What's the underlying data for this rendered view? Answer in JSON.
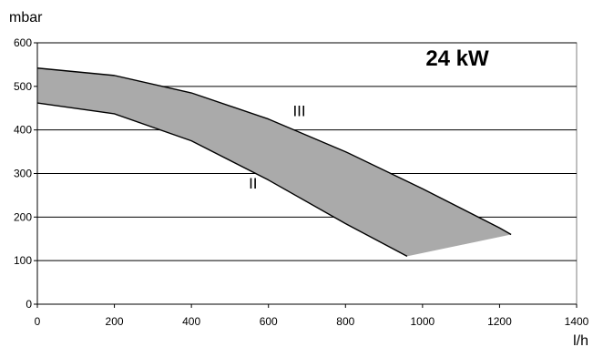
{
  "chart_data": {
    "type": "area",
    "title": "24 kW",
    "ylabel": "mbar",
    "xlabel": "l/h",
    "xlim": [
      0,
      1400
    ],
    "ylim": [
      0,
      600
    ],
    "x_ticks": [
      0,
      200,
      400,
      600,
      800,
      1000,
      1200,
      1400
    ],
    "y_ticks": [
      0,
      100,
      200,
      300,
      400,
      500,
      600
    ],
    "grid": "horizontal",
    "band_fill": "#aaaaaa",
    "series": [
      {
        "name": "III",
        "x": [
          0,
          200,
          400,
          600,
          800,
          1000,
          1200,
          1230
        ],
        "y": [
          542,
          525,
          485,
          425,
          350,
          265,
          175,
          160
        ]
      },
      {
        "name": "II",
        "x": [
          0,
          200,
          400,
          600,
          800,
          960
        ],
        "y": [
          462,
          437,
          375,
          285,
          185,
          110
        ]
      }
    ],
    "annotations": [
      {
        "text": "III",
        "x": 680,
        "y": 432
      },
      {
        "text": "II",
        "x": 560,
        "y": 265
      }
    ]
  }
}
